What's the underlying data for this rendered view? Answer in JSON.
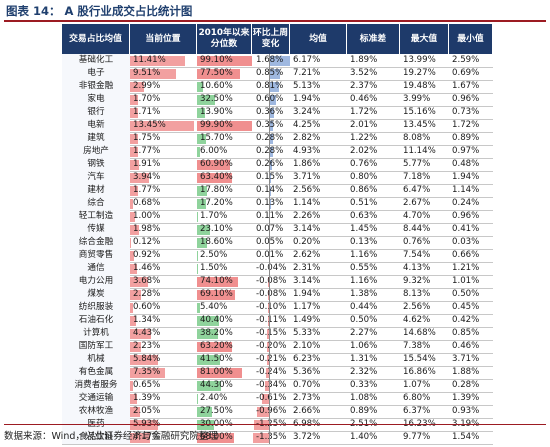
{
  "title": "图表 14： A 股行业成交占比统计图",
  "source": "数据来源：Wind，兴业证券经济与金融研究院整理",
  "chart_data": {
    "type": "table",
    "columns": [
      "交易占比均值",
      "当前位置",
      "2010年以来分位数",
      "环比上周变化",
      "均值",
      "标准差",
      "最大值",
      "最小值"
    ],
    "rows": [
      {
        "name": "基础化工",
        "pos": "11.41%",
        "pct": "99.10%",
        "chg": "1.68%",
        "mean": "6.17%",
        "std": "1.89%",
        "max": "13.99%",
        "min": "2.59%",
        "pos_v": 11.41,
        "pct_v": 99.1,
        "chg_v": 1.68
      },
      {
        "name": "电子",
        "pos": "9.51%",
        "pct": "77.50%",
        "chg": "0.85%",
        "mean": "7.21%",
        "std": "3.52%",
        "max": "19.27%",
        "min": "0.69%",
        "pos_v": 9.51,
        "pct_v": 77.5,
        "chg_v": 0.85
      },
      {
        "name": "非银金融",
        "pos": "2.99%",
        "pct": "10.60%",
        "chg": "0.81%",
        "mean": "5.13%",
        "std": "2.37%",
        "max": "19.48%",
        "min": "1.67%",
        "pos_v": 2.99,
        "pct_v": 10.6,
        "chg_v": 0.81
      },
      {
        "name": "家电",
        "pos": "1.70%",
        "pct": "32.50%",
        "chg": "0.60%",
        "mean": "1.94%",
        "std": "0.46%",
        "max": "3.99%",
        "min": "0.96%",
        "pos_v": 1.7,
        "pct_v": 32.5,
        "chg_v": 0.6
      },
      {
        "name": "银行",
        "pos": "1.71%",
        "pct": "13.90%",
        "chg": "0.36%",
        "mean": "3.24%",
        "std": "1.72%",
        "max": "15.16%",
        "min": "0.73%",
        "pos_v": 1.71,
        "pct_v": 13.9,
        "chg_v": 0.36
      },
      {
        "name": "电新",
        "pos": "13.45%",
        "pct": "99.90%",
        "chg": "0.35%",
        "mean": "4.25%",
        "std": "2.01%",
        "max": "13.45%",
        "min": "1.72%",
        "pos_v": 13.45,
        "pct_v": 99.9,
        "chg_v": 0.35
      },
      {
        "name": "建筑",
        "pos": "1.75%",
        "pct": "15.70%",
        "chg": "0.28%",
        "mean": "2.82%",
        "std": "1.22%",
        "max": "8.08%",
        "min": "0.89%",
        "pos_v": 1.75,
        "pct_v": 15.7,
        "chg_v": 0.28
      },
      {
        "name": "房地产",
        "pos": "1.77%",
        "pct": "6.00%",
        "chg": "0.28%",
        "mean": "4.93%",
        "std": "2.02%",
        "max": "11.14%",
        "min": "0.97%",
        "pos_v": 1.77,
        "pct_v": 6.0,
        "chg_v": 0.28
      },
      {
        "name": "钢铁",
        "pos": "1.91%",
        "pct": "60.90%",
        "chg": "0.26%",
        "mean": "1.86%",
        "std": "0.76%",
        "max": "5.77%",
        "min": "0.48%",
        "pos_v": 1.91,
        "pct_v": 60.9,
        "chg_v": 0.26
      },
      {
        "name": "汽车",
        "pos": "3.94%",
        "pct": "63.40%",
        "chg": "0.15%",
        "mean": "3.71%",
        "std": "0.80%",
        "max": "7.18%",
        "min": "1.94%",
        "pos_v": 3.94,
        "pct_v": 63.4,
        "chg_v": 0.15
      },
      {
        "name": "建材",
        "pos": "1.77%",
        "pct": "17.80%",
        "chg": "0.14%",
        "mean": "2.56%",
        "std": "0.86%",
        "max": "6.47%",
        "min": "1.14%",
        "pos_v": 1.77,
        "pct_v": 17.8,
        "chg_v": 0.14
      },
      {
        "name": "综合",
        "pos": "0.68%",
        "pct": "17.20%",
        "chg": "0.13%",
        "mean": "1.14%",
        "std": "0.51%",
        "max": "2.67%",
        "min": "0.24%",
        "pos_v": 0.68,
        "pct_v": 17.2,
        "chg_v": 0.13
      },
      {
        "name": "轻工制造",
        "pos": "1.00%",
        "pct": "1.70%",
        "chg": "0.11%",
        "mean": "2.26%",
        "std": "0.63%",
        "max": "4.70%",
        "min": "0.96%",
        "pos_v": 1.0,
        "pct_v": 1.7,
        "chg_v": 0.11
      },
      {
        "name": "传媒",
        "pos": "1.98%",
        "pct": "23.10%",
        "chg": "0.07%",
        "mean": "3.14%",
        "std": "1.45%",
        "max": "8.44%",
        "min": "0.41%",
        "pos_v": 1.98,
        "pct_v": 23.1,
        "chg_v": 0.07
      },
      {
        "name": "综合金融",
        "pos": "0.12%",
        "pct": "18.60%",
        "chg": "0.05%",
        "mean": "0.20%",
        "std": "0.13%",
        "max": "0.76%",
        "min": "0.03%",
        "pos_v": 0.12,
        "pct_v": 18.6,
        "chg_v": 0.05
      },
      {
        "name": "商贸零售",
        "pos": "0.92%",
        "pct": "2.50%",
        "chg": "0.01%",
        "mean": "2.62%",
        "std": "1.16%",
        "max": "7.54%",
        "min": "0.66%",
        "pos_v": 0.92,
        "pct_v": 2.5,
        "chg_v": 0.01
      },
      {
        "name": "通信",
        "pos": "1.46%",
        "pct": "1.50%",
        "chg": "-0.04%",
        "mean": "2.31%",
        "std": "0.55%",
        "max": "4.13%",
        "min": "1.21%",
        "pos_v": 1.46,
        "pct_v": 1.5,
        "chg_v": -0.04
      },
      {
        "name": "电力公用",
        "pos": "3.68%",
        "pct": "74.10%",
        "chg": "-0.08%",
        "mean": "3.14%",
        "std": "1.16%",
        "max": "9.32%",
        "min": "1.01%",
        "pos_v": 3.68,
        "pct_v": 74.1,
        "chg_v": -0.08
      },
      {
        "name": "煤炭",
        "pos": "2.28%",
        "pct": "69.10%",
        "chg": "-0.08%",
        "mean": "1.94%",
        "std": "1.38%",
        "max": "8.13%",
        "min": "0.50%",
        "pos_v": 2.28,
        "pct_v": 69.1,
        "chg_v": -0.08
      },
      {
        "name": "纺织服装",
        "pos": "0.60%",
        "pct": "5.40%",
        "chg": "-0.10%",
        "mean": "1.17%",
        "std": "0.44%",
        "max": "2.56%",
        "min": "0.45%",
        "pos_v": 0.6,
        "pct_v": 5.4,
        "chg_v": -0.1
      },
      {
        "name": "石油石化",
        "pos": "1.34%",
        "pct": "40.40%",
        "chg": "-0.11%",
        "mean": "1.49%",
        "std": "0.50%",
        "max": "4.62%",
        "min": "0.42%",
        "pos_v": 1.34,
        "pct_v": 40.4,
        "chg_v": -0.11
      },
      {
        "name": "计算机",
        "pos": "4.43%",
        "pct": "38.20%",
        "chg": "-0.15%",
        "mean": "5.33%",
        "std": "2.27%",
        "max": "14.68%",
        "min": "0.85%",
        "pos_v": 4.43,
        "pct_v": 38.2,
        "chg_v": -0.15
      },
      {
        "name": "国防军工",
        "pos": "2.23%",
        "pct": "63.20%",
        "chg": "-0.20%",
        "mean": "2.10%",
        "std": "1.06%",
        "max": "7.38%",
        "min": "0.46%",
        "pos_v": 2.23,
        "pct_v": 63.2,
        "chg_v": -0.2
      },
      {
        "name": "机械",
        "pos": "5.84%",
        "pct": "41.50%",
        "chg": "-0.21%",
        "mean": "6.23%",
        "std": "1.31%",
        "max": "15.54%",
        "min": "3.71%",
        "pos_v": 5.84,
        "pct_v": 41.5,
        "chg_v": -0.21
      },
      {
        "name": "有色金属",
        "pos": "7.35%",
        "pct": "81.00%",
        "chg": "-0.24%",
        "mean": "5.36%",
        "std": "2.32%",
        "max": "16.86%",
        "min": "1.88%",
        "pos_v": 7.35,
        "pct_v": 81.0,
        "chg_v": -0.24
      },
      {
        "name": "消费者服务",
        "pos": "0.65%",
        "pct": "44.30%",
        "chg": "-0.34%",
        "mean": "0.70%",
        "std": "0.33%",
        "max": "1.07%",
        "min": "0.28%",
        "pos_v": 0.65,
        "pct_v": 44.3,
        "chg_v": -0.34
      },
      {
        "name": "交通运输",
        "pos": "1.39%",
        "pct": "2.40%",
        "chg": "-0.61%",
        "mean": "2.73%",
        "std": "1.08%",
        "max": "6.80%",
        "min": "1.39%",
        "pos_v": 1.39,
        "pct_v": 2.4,
        "chg_v": -0.61
      },
      {
        "name": "农林牧渔",
        "pos": "2.05%",
        "pct": "27.50%",
        "chg": "-0.96%",
        "mean": "2.66%",
        "std": "0.89%",
        "max": "6.37%",
        "min": "0.93%",
        "pos_v": 2.05,
        "pct_v": 27.5,
        "chg_v": -0.96
      },
      {
        "name": "医药",
        "pos": "5.93%",
        "pct": "30.00%",
        "chg": "-1.25%",
        "mean": "6.98%",
        "std": "2.51%",
        "max": "16.23%",
        "min": "3.19%",
        "pos_v": 5.93,
        "pct_v": 30.0,
        "chg_v": -1.25
      },
      {
        "name": "食品饮料",
        "pos": "4.17%",
        "pct": "68.00%",
        "chg": "-1.35%",
        "mean": "3.72%",
        "std": "1.40%",
        "max": "9.77%",
        "min": "1.54%",
        "pos_v": 4.17,
        "pct_v": 68.0,
        "chg_v": -1.35
      }
    ]
  }
}
